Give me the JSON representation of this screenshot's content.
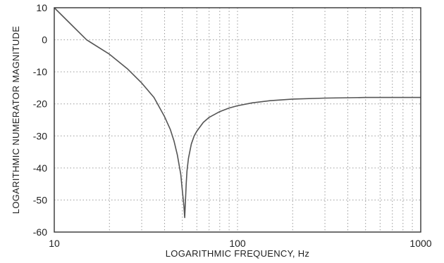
{
  "chart_data": {
    "type": "line",
    "xlabel": "LOGARITHMIC FREQUENCY,  Hz",
    "ylabel": "LOGARITHMIC NUMERATOR MAGNITUDE",
    "x_scale": "log",
    "xlim": [
      10,
      1000
    ],
    "ylim": [
      -60,
      10
    ],
    "x_tick_labels": [
      "10",
      "100",
      "1000"
    ],
    "y_tick_labels": [
      "10",
      "0",
      "-10",
      "-20",
      "-30",
      "-40",
      "-50",
      "-60"
    ],
    "grid": true,
    "series": [
      {
        "x": [
          10,
          12,
          15,
          20,
          25,
          30,
          35,
          40,
          43,
          45,
          47,
          49,
          50,
          51,
          51.5,
          52,
          52.5,
          53,
          54,
          56,
          58,
          60,
          65,
          70,
          80,
          90,
          100,
          120,
          150,
          200,
          300,
          500,
          1000
        ],
        "y": [
          10,
          5.5,
          0,
          -4.5,
          -9,
          -13.5,
          -18,
          -24,
          -28,
          -31.5,
          -36,
          -42,
          -47,
          -52,
          -55.5,
          -50,
          -45,
          -41,
          -37,
          -32.5,
          -30,
          -28.5,
          -25.8,
          -24.2,
          -22.4,
          -21.3,
          -20.6,
          -19.7,
          -19.0,
          -18.5,
          -18.2,
          -18.0,
          -18.0
        ]
      }
    ]
  }
}
